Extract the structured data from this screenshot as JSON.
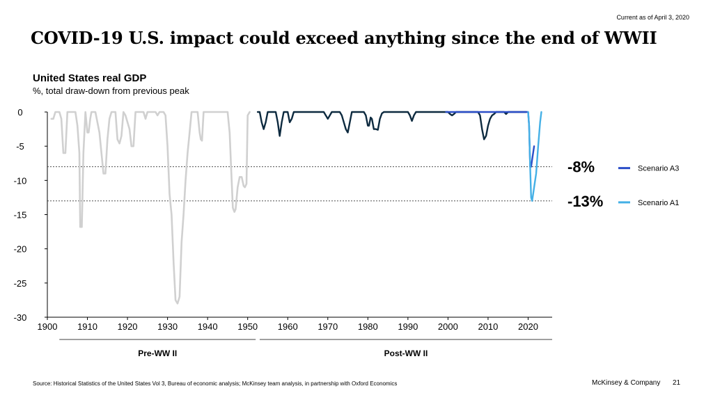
{
  "header": {
    "date_note": "Current as of April 3, 2020",
    "title": "COVID-19 U.S. impact could exceed anything since the end of WWII"
  },
  "chart": {
    "title": "United States real GDP",
    "subtitle": "%, total draw-down from previous peak"
  },
  "chart_data": {
    "type": "line",
    "title": "United States real GDP",
    "subtitle": "%, total draw-down from previous peak",
    "xlim": [
      1900,
      2026
    ],
    "ylim": [
      -30,
      0
    ],
    "x_ticks": [
      "1900",
      "1910",
      "1920",
      "1930",
      "1940",
      "1950",
      "1960",
      "1970",
      "1980",
      "1990",
      "2000",
      "2010",
      "2020"
    ],
    "y_ticks": [
      "0",
      "-5",
      "-10",
      "-15",
      "-20",
      "-25",
      "-30"
    ],
    "grid": false,
    "legend_position": "right",
    "reference_lines": [
      {
        "y": -8,
        "label": "-8%"
      },
      {
        "y": -13,
        "label": "-13%"
      }
    ],
    "period_labels": [
      {
        "label": "Pre-WW II",
        "from": 1903,
        "to": 1952
      },
      {
        "label": "Post-WW II",
        "from": 1953,
        "to": 2026
      }
    ],
    "series": [
      {
        "color": "#d0d0d0",
        "x": [
          1901,
          1901.5,
          1902,
          1902.5,
          1903,
          1903.5,
          1904,
          1904.2,
          1904.5,
          1905,
          1906,
          1907,
          1907.5,
          1908,
          1908.2,
          1908.6,
          1909,
          1909.5,
          1910,
          1910.3,
          1910.7,
          1911,
          1911.5,
          1912,
          1913,
          1913.5,
          1914,
          1914.5,
          1915,
          1915.5,
          1916,
          1917,
          1917.5,
          1918,
          1918.5,
          1919,
          1919.5,
          1920,
          1920.5,
          1921,
          1921.5,
          1922,
          1922.5,
          1923,
          1924,
          1924.5,
          1925,
          1926,
          1927,
          1927.5,
          1928,
          1929,
          1929.5,
          1930,
          1930.5,
          1931,
          1931.5,
          1932,
          1932.5,
          1933,
          1933.5,
          1934,
          1934.5,
          1935,
          1935.5,
          1936,
          1936.5,
          1937,
          1937.5,
          1938,
          1938.3,
          1938.6,
          1939,
          1940,
          1941,
          1942,
          1943,
          1944,
          1945,
          1945.5,
          1946,
          1946.3,
          1946.7,
          1947,
          1947.5,
          1948,
          1948.5,
          1949,
          1949.3,
          1949.7,
          1950,
          1950.5
        ],
        "values": [
          -1,
          -1,
          0,
          0,
          0,
          -1,
          -6,
          -6,
          -6,
          0,
          0,
          0,
          -2,
          -6,
          -16.8,
          -16.8,
          -6,
          0,
          -3,
          -3,
          -1,
          0,
          0,
          0,
          -3,
          -6,
          -9,
          -9,
          -4,
          -1,
          0,
          0,
          -4,
          -4.6,
          -3.5,
          0,
          -0.5,
          -1.5,
          -2.5,
          -5,
          -5,
          0,
          0,
          0,
          0,
          -1,
          0,
          0,
          0,
          -0.5,
          0,
          0,
          -0.5,
          -5,
          -12,
          -15,
          -22,
          -27.5,
          -28,
          -27,
          -19,
          -15,
          -10,
          -6,
          -3,
          0,
          0,
          0,
          0,
          -3,
          -4,
          -4.2,
          0,
          0,
          0,
          0,
          0,
          0,
          0,
          -3,
          -10,
          -14,
          -14.6,
          -14.2,
          -11,
          -9.5,
          -9.5,
          -10.8,
          -11,
          -10.5,
          -0.5,
          0
        ]
      },
      {
        "color": "#0d2a3f",
        "x": [
          1952.5,
          1953,
          1953.5,
          1954,
          1954.5,
          1955,
          1956,
          1957,
          1957.5,
          1958,
          1958.5,
          1959,
          1960,
          1960.5,
          1961,
          1961.5,
          1962,
          1969,
          1969.5,
          1970,
          1970.5,
          1971,
          1972,
          1973,
          1973.5,
          1974,
          1974.5,
          1975,
          1975.5,
          1976,
          1979,
          1979.5,
          1980,
          1980.3,
          1980.7,
          1981,
          1981.5,
          1982,
          1982.5,
          1983,
          1983.5,
          1984,
          1990,
          1990.5,
          1991,
          1991.5,
          1992,
          2000,
          2000.5,
          2001,
          2001.5,
          2002,
          2007.5,
          2008,
          2008.5,
          2009,
          2009.5,
          2010,
          2010.5,
          2011,
          2011.5,
          2012,
          2014,
          2014.5,
          2015,
          2019.5
        ],
        "values": [
          0,
          0,
          -1.5,
          -2.5,
          -1.5,
          0,
          0,
          0,
          -1.5,
          -3.5,
          -1.5,
          0,
          0,
          -1.5,
          -1,
          0,
          0,
          0,
          -0.5,
          -1,
          -0.5,
          0,
          0,
          0,
          -0.5,
          -1.5,
          -2.5,
          -3,
          -1.5,
          0,
          0,
          -0.5,
          -2,
          -2,
          -0.8,
          -1,
          -2.5,
          -2.5,
          -2.6,
          -1,
          -0.2,
          0,
          0,
          -0.5,
          -1.3,
          -0.5,
          0,
          0,
          -0.3,
          -0.5,
          -0.3,
          0,
          0,
          -0.5,
          -2.5,
          -4,
          -3.5,
          -2,
          -1,
          -0.5,
          -0.3,
          0,
          0,
          -0.3,
          0,
          0
        ]
      },
      {
        "name": "Scenario A3",
        "color": "#2b4ec8",
        "x": [
          1999.5,
          2020,
          2020.25,
          2020.5,
          2020.75,
          2021,
          2021.5
        ],
        "values": [
          0,
          0,
          -2,
          -8,
          -8,
          -7,
          -5
        ]
      },
      {
        "name": "Scenario A1",
        "color": "#45b0e6",
        "x": [
          2020,
          2020.25,
          2020.5,
          2020.75,
          2021,
          2021.25,
          2021.5,
          2022,
          2022.5,
          2023,
          2023.3
        ],
        "values": [
          0,
          -2,
          -8,
          -12.5,
          -13,
          -12,
          -11,
          -9,
          -5,
          -1.5,
          0
        ]
      }
    ]
  },
  "footer": {
    "source": "Source: Historical Statistics of the United States Vol 3, Bureau of economic analysis; McKinsey team analysis, in partnership with Oxford Economics",
    "brand": "McKinsey & Company",
    "page_number": "21"
  }
}
